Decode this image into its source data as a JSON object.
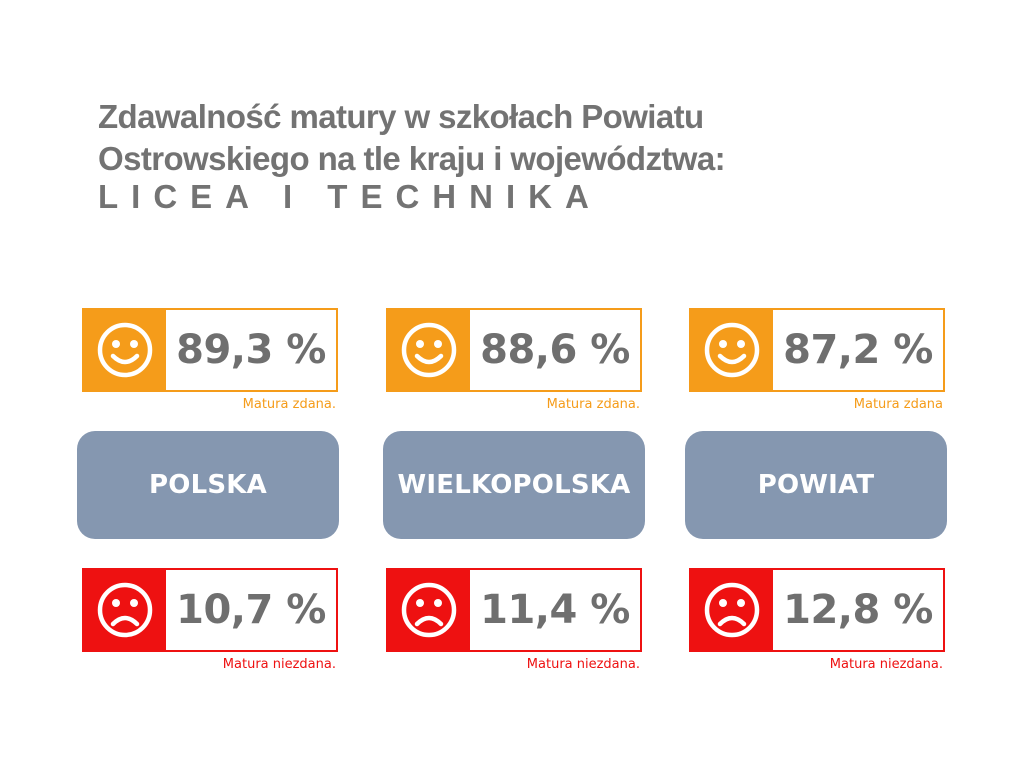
{
  "title": {
    "line1": "Zdawalność matury w szkołach Powiatu",
    "line2": "Ostrowskiego na tle kraju i województwa:",
    "line3": "LICEA I TECHNIKA"
  },
  "colors": {
    "pass": "#f59c1a",
    "fail": "#ee1111",
    "region": "#8597b0",
    "text": "#737373"
  },
  "columns": [
    {
      "region": "POLSKA",
      "pass": {
        "value": "89,3 %",
        "caption": "Matura zdana.",
        "icon": "smiley-face-icon"
      },
      "fail": {
        "value": "10,7 %",
        "caption": "Matura niezdana.",
        "icon": "sad-face-icon"
      }
    },
    {
      "region": "WIELKOPOLSKA",
      "pass": {
        "value": "88,6 %",
        "caption": "Matura zdana.",
        "icon": "smiley-face-icon"
      },
      "fail": {
        "value": "11,4 %",
        "caption": "Matura niezdana.",
        "icon": "sad-face-icon"
      }
    },
    {
      "region": "POWIAT",
      "pass": {
        "value": "87,2 %",
        "caption": "Matura zdana",
        "icon": "smiley-face-icon"
      },
      "fail": {
        "value": "12,8 %",
        "caption": "Matura niezdana.",
        "icon": "sad-face-icon"
      }
    }
  ]
}
